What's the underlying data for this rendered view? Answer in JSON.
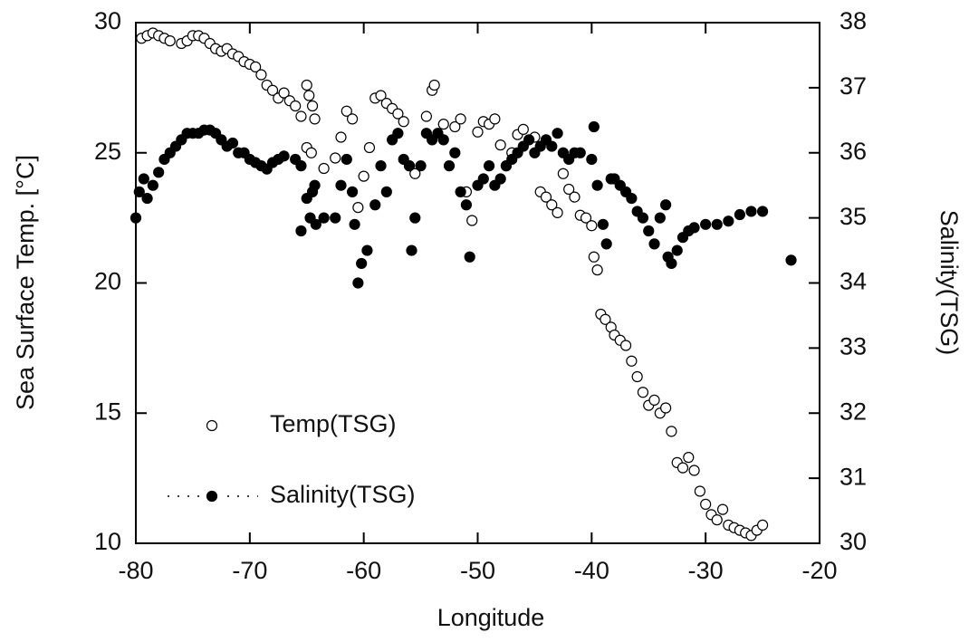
{
  "chart_data": {
    "type": "scatter",
    "x_label": "Longitude",
    "y_label": "Sea Surface Temp. [°C]",
    "y2_label": "Salinity(TSG)",
    "xlim": [
      -80,
      -20
    ],
    "xticks": [
      -80,
      -70,
      -60,
      -50,
      -40,
      -30,
      -20
    ],
    "ylim": [
      10,
      30
    ],
    "yticks": [
      10,
      15,
      20,
      25,
      30
    ],
    "y2lim": [
      30,
      38
    ],
    "y2ticks": [
      30,
      31,
      32,
      33,
      34,
      35,
      36,
      37,
      38
    ],
    "legend": "lower left",
    "series": [
      {
        "name": "Temp(TSG)",
        "color": "#ffffff",
        "marker": "open",
        "x": [
          -79.5,
          -79,
          -78.5,
          -78,
          -77.5,
          -77,
          -76,
          -75.5,
          -75,
          -74.5,
          -74,
          -73.5,
          -73,
          -72.5,
          -72,
          -71.5,
          -71,
          -70.5,
          -70,
          -69.5,
          -69,
          -68.5,
          -68,
          -67.5,
          -67,
          -66.5,
          -66,
          -65.5,
          -65,
          -64.8,
          -64.5,
          -64.3,
          -65,
          -64.6,
          -63.5,
          -62.5,
          -62,
          -61.5,
          -61,
          -60.5,
          -60,
          -59.5,
          -59,
          -58.5,
          -58,
          -57.5,
          -57,
          -56.5,
          -56,
          -55.5,
          -54.5,
          -54,
          -53.8,
          -53,
          -52,
          -51.5,
          -51,
          -50.5,
          -50,
          -49.5,
          -49,
          -48.5,
          -48,
          -47.5,
          -47,
          -46.5,
          -46,
          -45,
          -44.5,
          -44,
          -43.5,
          -43,
          -42.5,
          -42,
          -41.5,
          -41,
          -40.5,
          -40,
          -39.8,
          -39.5,
          -39.2,
          -38.8,
          -38.3,
          -38,
          -37.5,
          -37,
          -36.5,
          -36,
          -35.5,
          -35,
          -34.5,
          -34,
          -33.5,
          -33,
          -32.5,
          -32,
          -31.5,
          -31,
          -30.5,
          -30,
          -29.5,
          -29,
          -28.5,
          -28,
          -27.5,
          -27,
          -26.5,
          -26,
          -25.5,
          -25
        ],
        "values": [
          29.4,
          29.5,
          29.6,
          29.5,
          29.4,
          29.3,
          29.2,
          29.3,
          29.5,
          29.5,
          29.4,
          29.2,
          29.0,
          28.9,
          29.0,
          28.8,
          28.7,
          28.5,
          28.4,
          28.3,
          28.0,
          27.6,
          27.4,
          27.1,
          27.3,
          27.0,
          26.8,
          26.4,
          27.6,
          27.2,
          26.8,
          26.3,
          25.2,
          25.0,
          24.4,
          24.8,
          25.6,
          26.6,
          26.3,
          22.9,
          24.1,
          25.2,
          27.1,
          27.2,
          26.9,
          26.7,
          26.5,
          26.2,
          24.5,
          24.2,
          26.4,
          27.4,
          27.6,
          26.1,
          26.0,
          26.3,
          23.5,
          22.4,
          25.8,
          26.2,
          26.1,
          26.3,
          25.3,
          24.5,
          25.0,
          25.7,
          25.9,
          25.6,
          23.5,
          23.3,
          23.0,
          22.7,
          24.2,
          23.6,
          23.3,
          22.6,
          22.5,
          22.2,
          21.0,
          20.5,
          18.8,
          18.6,
          18.3,
          18.0,
          17.8,
          17.6,
          17.0,
          16.4,
          15.8,
          15.3,
          15.5,
          15.0,
          15.2,
          14.3,
          13.1,
          12.9,
          13.3,
          12.8,
          12.0,
          11.5,
          11.1,
          10.9,
          11.3,
          10.7,
          10.6,
          10.5,
          10.4,
          10.3,
          10.5,
          10.7
        ]
      },
      {
        "name": "Salinity(TSG)",
        "color": "#000000",
        "marker": "filled",
        "axis": "y2",
        "x": [
          -80,
          -79.7,
          -79.3,
          -79,
          -78.5,
          -78,
          -77.5,
          -77,
          -76.5,
          -76,
          -75.5,
          -75,
          -74.5,
          -74,
          -73.5,
          -73,
          -72.5,
          -72,
          -71.5,
          -71,
          -70.5,
          -70,
          -69.5,
          -69,
          -68.5,
          -68,
          -67.5,
          -67,
          -66,
          -65.5,
          -65,
          -64.7,
          -64.3,
          -65.5,
          -64.5,
          -64.2,
          -63.5,
          -62.5,
          -62,
          -61.5,
          -61,
          -60.8,
          -60.5,
          -60.2,
          -59.7,
          -59,
          -58.5,
          -58,
          -57.5,
          -57,
          -56.5,
          -56,
          -55.8,
          -55.5,
          -55,
          -54.5,
          -54,
          -53.5,
          -53,
          -52.5,
          -52,
          -51.5,
          -51,
          -50.7,
          -50,
          -49.5,
          -49,
          -48.5,
          -48,
          -47.5,
          -47,
          -46.5,
          -46,
          -45.5,
          -45,
          -44.5,
          -44,
          -43.5,
          -43,
          -42.5,
          -42,
          -41.5,
          -41,
          -40,
          -39.8,
          -39.5,
          -39,
          -38.7,
          -38.3,
          -38,
          -37.5,
          -37,
          -36.5,
          -36,
          -35.5,
          -35,
          -34.5,
          -34,
          -33.5,
          -33.3,
          -33,
          -32.5,
          -32,
          -31.5,
          -31,
          -30,
          -29,
          -28,
          -27,
          -26,
          -25,
          -22.5
        ],
        "values": [
          35.0,
          35.4,
          35.6,
          35.3,
          35.5,
          35.7,
          35.9,
          36.0,
          36.1,
          36.2,
          36.3,
          36.3,
          36.3,
          36.35,
          36.35,
          36.3,
          36.2,
          36.1,
          36.15,
          36.0,
          36.0,
          35.9,
          35.85,
          35.8,
          35.75,
          35.85,
          35.9,
          35.95,
          35.9,
          35.8,
          35.3,
          35.0,
          35.5,
          34.8,
          35.4,
          34.9,
          35.0,
          35.0,
          35.5,
          35.9,
          35.4,
          34.9,
          34.0,
          34.3,
          34.5,
          35.2,
          35.8,
          35.4,
          36.2,
          36.3,
          35.9,
          35.8,
          34.5,
          35.0,
          35.8,
          36.3,
          36.2,
          36.3,
          36.2,
          35.8,
          36.0,
          35.4,
          35.2,
          34.4,
          35.5,
          35.6,
          35.8,
          35.5,
          35.6,
          35.8,
          35.9,
          36.0,
          36.1,
          36.2,
          36.0,
          36.1,
          36.2,
          36.1,
          36.3,
          36.0,
          35.9,
          36.0,
          36.0,
          35.9,
          36.4,
          35.5,
          34.9,
          34.6,
          35.6,
          35.6,
          35.5,
          35.4,
          35.3,
          35.1,
          35.0,
          34.8,
          34.6,
          35.0,
          35.2,
          34.4,
          34.3,
          34.5,
          34.7,
          34.8,
          34.85,
          34.9,
          34.9,
          34.95,
          35.05,
          35.1,
          35.1,
          34.35
        ]
      }
    ]
  }
}
